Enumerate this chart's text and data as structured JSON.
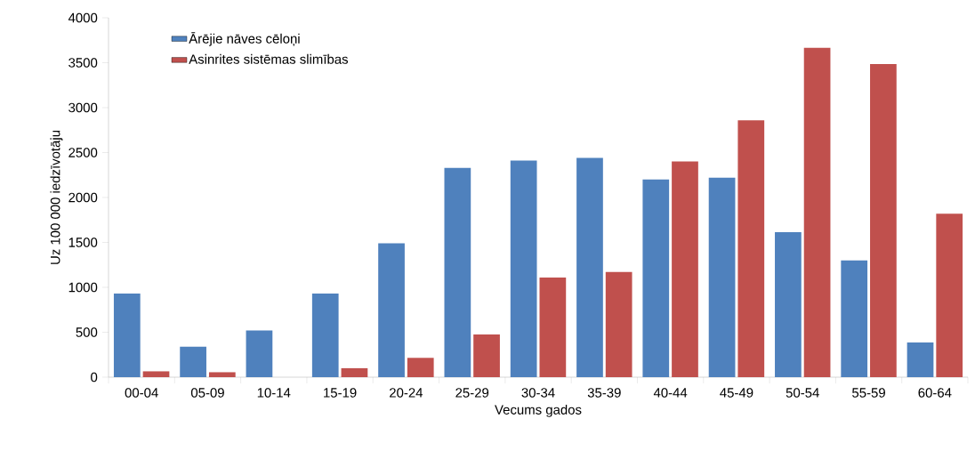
{
  "chart_data": {
    "type": "bar",
    "xlabel": "Vecums gados",
    "ylabel": "Uz 100 000 iedzīvotāju",
    "categories": [
      "00-04",
      "05-09",
      "10-14",
      "15-19",
      "20-24",
      "25-29",
      "30-34",
      "35-39",
      "40-44",
      "45-49",
      "50-54",
      "55-59",
      "60-64"
    ],
    "series": [
      {
        "name": "Ārējie nāves cēloņi",
        "color": "#4f81bd",
        "values": [
          930,
          340,
          520,
          930,
          1490,
          2330,
          2410,
          2440,
          2200,
          2220,
          1615,
          1300,
          385
        ]
      },
      {
        "name": "Asinrites sistēmas slimības",
        "color": "#c0504d",
        "values": [
          65,
          55,
          0,
          100,
          215,
          475,
          1110,
          1170,
          2400,
          2860,
          3665,
          3485,
          1820
        ]
      }
    ],
    "ylim": [
      0,
      4000
    ],
    "yticks": [
      0,
      500,
      1000,
      1500,
      2000,
      2500,
      3000,
      3500,
      4000
    ],
    "grid": false,
    "legend": "top left"
  }
}
